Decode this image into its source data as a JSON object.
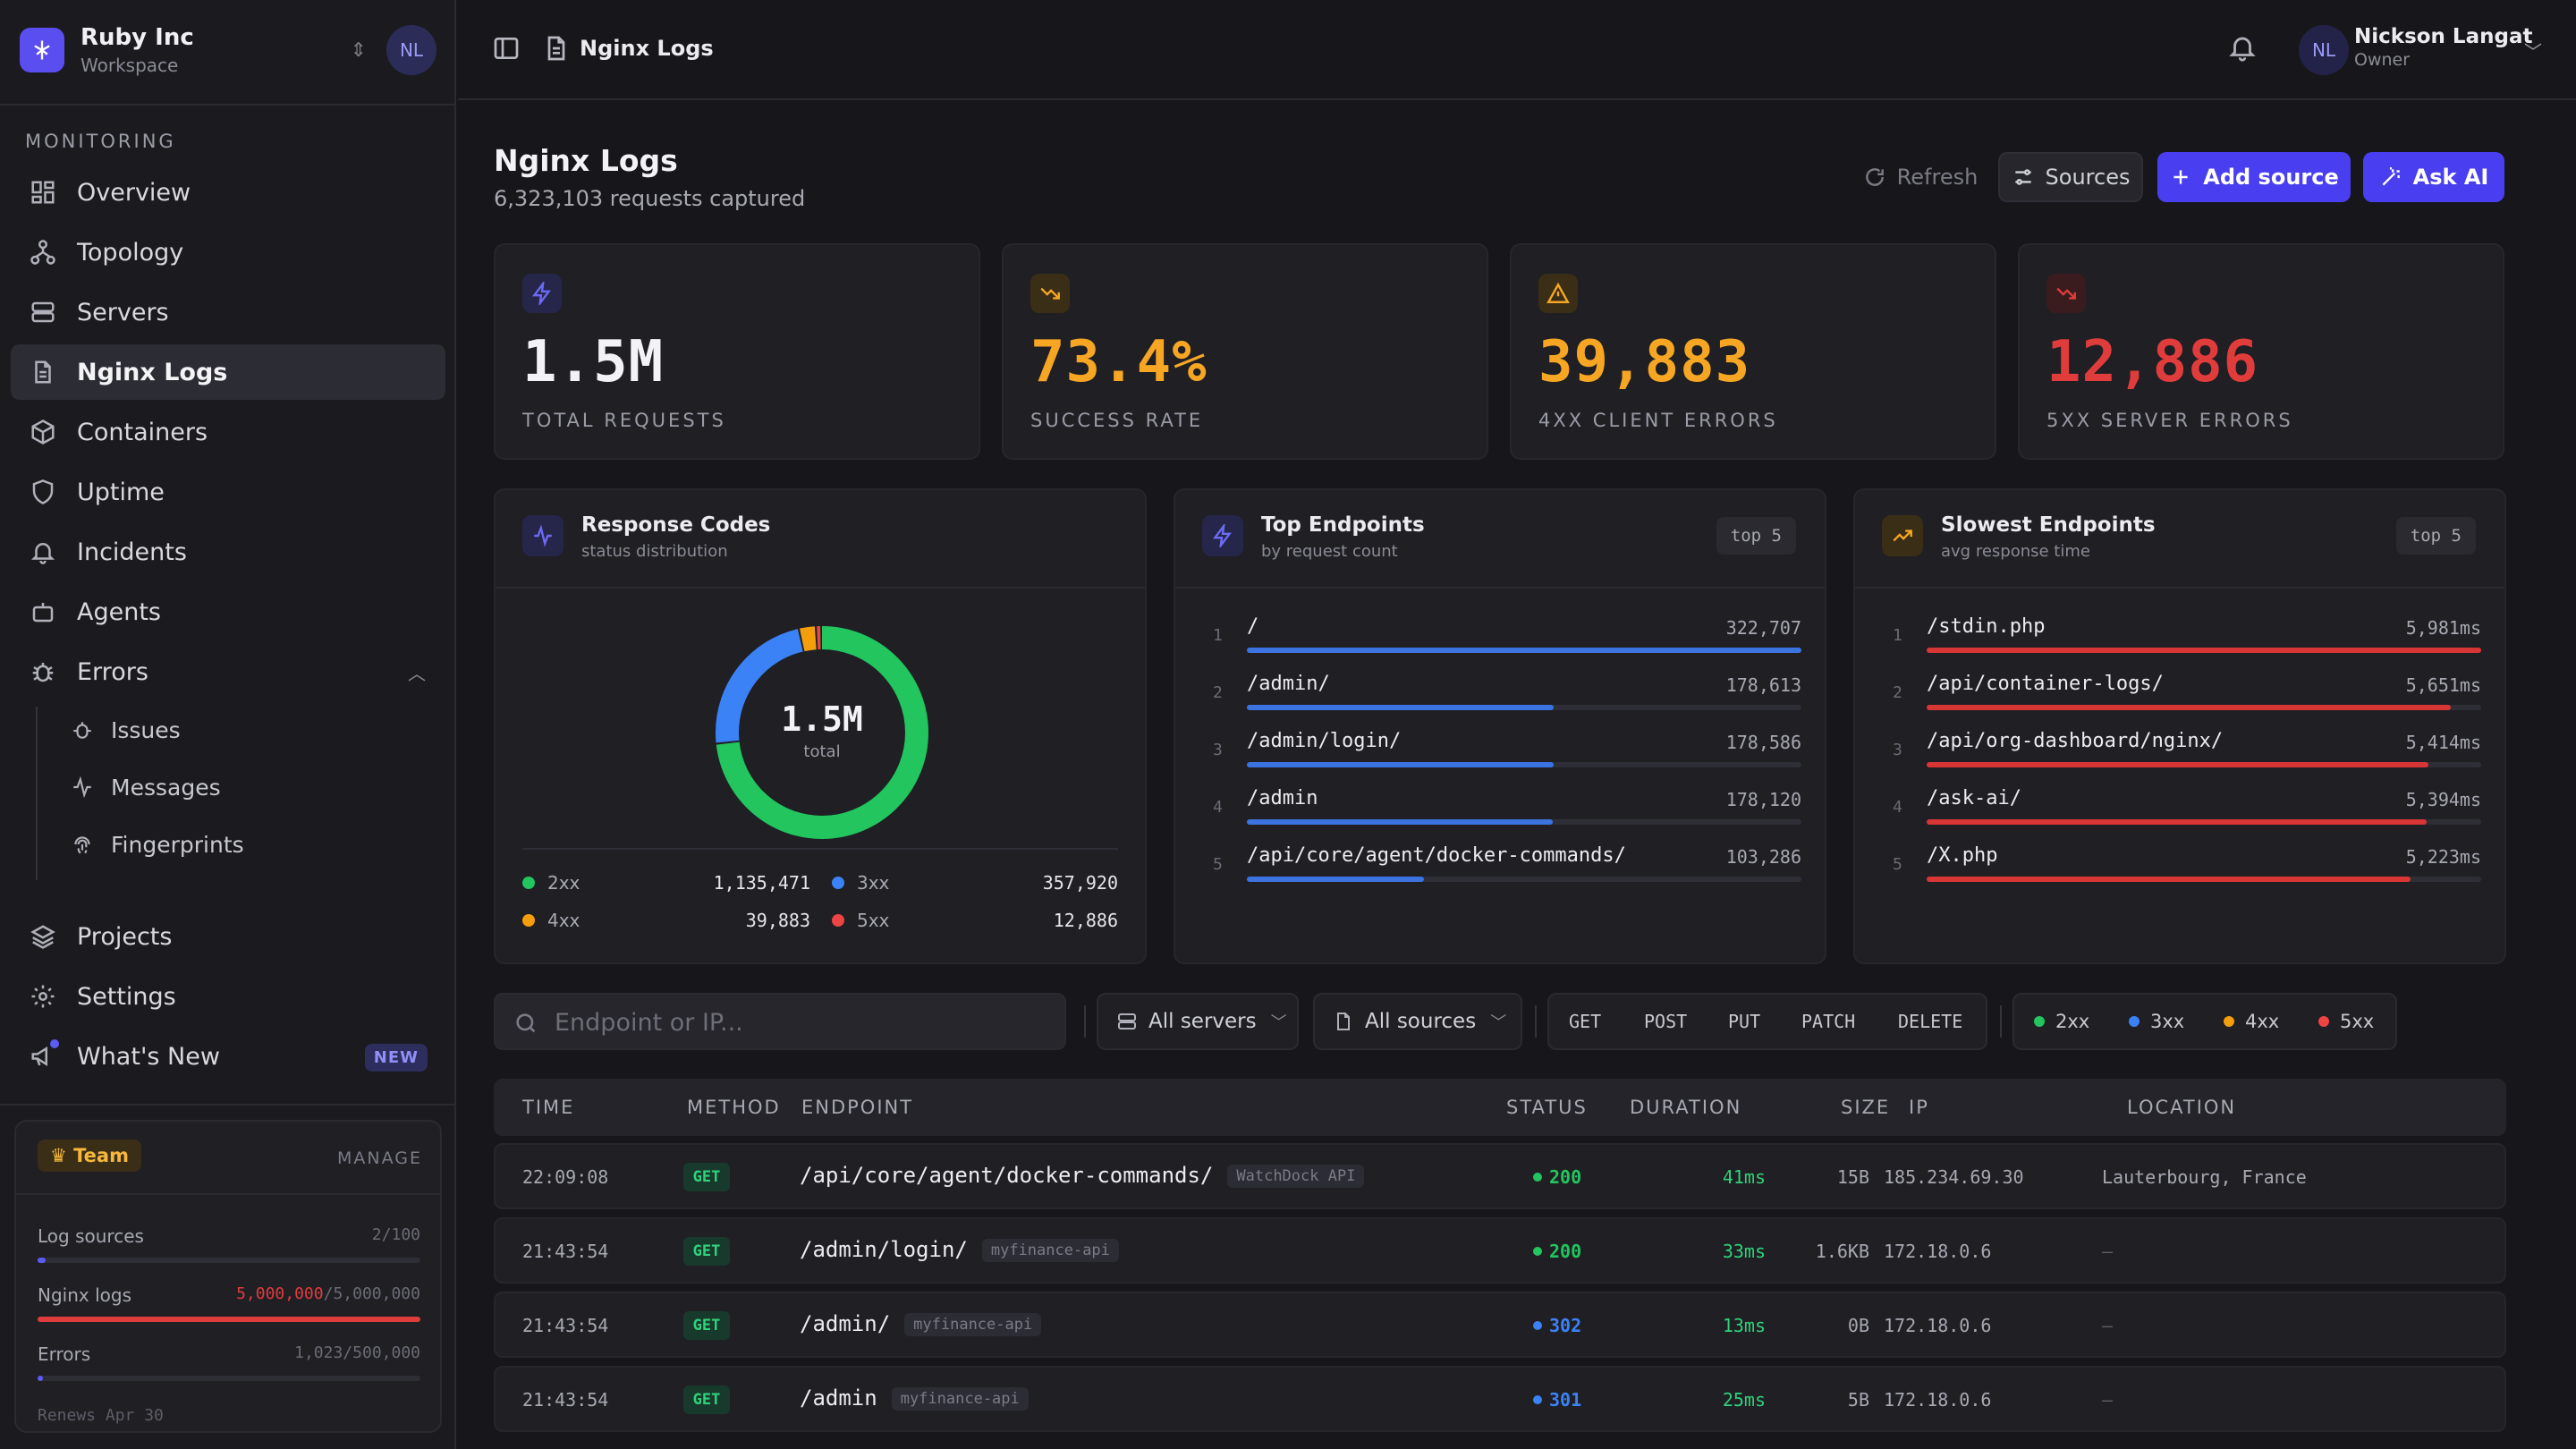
{
  "workspace": {
    "name": "Ruby Inc",
    "sub": "Workspace",
    "initials": "NL"
  },
  "sidebar": {
    "section": "MONITORING",
    "items": [
      {
        "label": "Overview",
        "icon": "grid-icon"
      },
      {
        "label": "Topology",
        "icon": "topology-icon"
      },
      {
        "label": "Servers",
        "icon": "server-icon"
      },
      {
        "label": "Nginx Logs",
        "icon": "file-icon"
      },
      {
        "label": "Containers",
        "icon": "box-icon"
      },
      {
        "label": "Uptime",
        "icon": "shield-icon"
      },
      {
        "label": "Incidents",
        "icon": "bell-icon"
      },
      {
        "label": "Agents",
        "icon": "bot-icon"
      },
      {
        "label": "Errors",
        "icon": "bug-icon"
      }
    ],
    "errors_sub": [
      {
        "label": "Issues",
        "icon": "bug-icon"
      },
      {
        "label": "Messages",
        "icon": "activity-icon"
      },
      {
        "label": "Fingerprints",
        "icon": "fingerprint-icon"
      }
    ],
    "bottom": [
      {
        "label": "Projects",
        "icon": "layers-icon"
      },
      {
        "label": "Settings",
        "icon": "gear-icon"
      },
      {
        "label": "What's New",
        "icon": "megaphone-icon",
        "badge": "NEW"
      }
    ]
  },
  "team": {
    "badge": "Team",
    "manage": "MANAGE",
    "quotas": [
      {
        "label": "Log sources",
        "used": "2",
        "limit": "100",
        "fraction": 0.02,
        "color": "#5b5bf5"
      },
      {
        "label": "Nginx logs",
        "used": "5,000,000",
        "limit": "5,000,000",
        "fraction": 1.0,
        "color": "#e03c3c"
      },
      {
        "label": "Errors",
        "used": "1,023",
        "limit": "500,000",
        "fraction": 0.002,
        "color": "#5b5bf5"
      }
    ],
    "renews": "Renews Apr 30"
  },
  "topbar": {
    "crumb": "Nginx Logs"
  },
  "user": {
    "initials": "NL",
    "name": "Nickson Langat",
    "role": "Owner"
  },
  "page": {
    "title": "Nginx Logs",
    "subtitle": "6,323,103 requests captured"
  },
  "actions": {
    "refresh": "Refresh",
    "sources": "Sources",
    "add": "Add source",
    "ai": "Ask AI"
  },
  "stats": [
    {
      "value": "1.5M",
      "label": "TOTAL REQUESTS",
      "color": "#f3f3f6",
      "icon": "bolt-icon",
      "icon_color": "#6b6bf5",
      "icon_bg": "#26264a"
    },
    {
      "value": "73.4%",
      "label": "SUCCESS RATE",
      "color": "#f6a623",
      "icon": "trend-down-icon",
      "icon_color": "#f6a623",
      "icon_bg": "#3a2e16"
    },
    {
      "value": "39,883",
      "label": "4XX CLIENT ERRORS",
      "color": "#f6a623",
      "icon": "warning-icon",
      "icon_color": "#f6a623",
      "icon_bg": "#3a2e16"
    },
    {
      "value": "12,886",
      "label": "5XX SERVER ERRORS",
      "color": "#e03c3c",
      "icon": "trend-down-icon",
      "icon_color": "#e03c3c",
      "icon_bg": "#3a1c1e"
    }
  ],
  "codes": {
    "title": "Response Codes",
    "subtitle": "status distribution",
    "total": "1.5M",
    "total_label": "total",
    "legend": [
      {
        "name": "2xx",
        "value": "1,135,471",
        "count": 1135471,
        "color": "#22c55e"
      },
      {
        "name": "3xx",
        "value": "357,920",
        "count": 357920,
        "color": "#3b82f6"
      },
      {
        "name": "4xx",
        "value": "39,883",
        "count": 39883,
        "color": "#f59e0b"
      },
      {
        "name": "5xx",
        "value": "12,886",
        "count": 12886,
        "color": "#ef4444"
      }
    ]
  },
  "top": {
    "title": "Top Endpoints",
    "subtitle": "by request count",
    "badge": "top 5",
    "rows": [
      {
        "n": "1",
        "path": "/",
        "value": "322,707",
        "fraction": 1.0
      },
      {
        "n": "2",
        "path": "/admin/",
        "value": "178,613",
        "fraction": 0.553
      },
      {
        "n": "3",
        "path": "/admin/login/",
        "value": "178,586",
        "fraction": 0.553
      },
      {
        "n": "4",
        "path": "/admin",
        "value": "178,120",
        "fraction": 0.552
      },
      {
        "n": "5",
        "path": "/api/core/agent/docker-commands/",
        "value": "103,286",
        "fraction": 0.32
      }
    ]
  },
  "slow": {
    "title": "Slowest Endpoints",
    "subtitle": "avg response time",
    "badge": "top 5",
    "rows": [
      {
        "n": "1",
        "path": "/stdin.php",
        "value": "5,981ms",
        "fraction": 1.0
      },
      {
        "n": "2",
        "path": "/api/container-logs/",
        "value": "5,651ms",
        "fraction": 0.945
      },
      {
        "n": "3",
        "path": "/api/org-dashboard/nginx/",
        "value": "5,414ms",
        "fraction": 0.905
      },
      {
        "n": "4",
        "path": "/ask-ai/",
        "value": "5,394ms",
        "fraction": 0.902
      },
      {
        "n": "5",
        "path": "/X.php",
        "value": "5,223ms",
        "fraction": 0.873
      }
    ]
  },
  "filters": {
    "search_placeholder": "Endpoint or IP...",
    "servers": "All servers",
    "sources": "All sources",
    "methods": [
      "GET",
      "POST",
      "PUT",
      "PATCH",
      "DELETE"
    ],
    "statuses": [
      {
        "name": "2xx",
        "color": "#22c55e"
      },
      {
        "name": "3xx",
        "color": "#3b82f6"
      },
      {
        "name": "4xx",
        "color": "#f59e0b"
      },
      {
        "name": "5xx",
        "color": "#ef4444"
      }
    ]
  },
  "table": {
    "headers": [
      "TIME",
      "METHOD",
      "ENDPOINT",
      "STATUS",
      "DURATION",
      "SIZE",
      "IP",
      "LOCATION"
    ],
    "rows": [
      {
        "time": "22:09:08",
        "method": "GET",
        "endpoint": "/api/core/agent/docker-commands/",
        "tag": "WatchDock API",
        "status": "200",
        "status_color": "#22c55e",
        "duration": "41ms",
        "size": "15B",
        "ip": "185.234.69.30",
        "location": "Lauterbourg, France"
      },
      {
        "time": "21:43:54",
        "method": "GET",
        "endpoint": "/admin/login/",
        "tag": "myfinance-api",
        "status": "200",
        "status_color": "#22c55e",
        "duration": "33ms",
        "size": "1.6KB",
        "ip": "172.18.0.6",
        "location": "—"
      },
      {
        "time": "21:43:54",
        "method": "GET",
        "endpoint": "/admin/",
        "tag": "myfinance-api",
        "status": "302",
        "status_color": "#3b82f6",
        "duration": "13ms",
        "size": "0B",
        "ip": "172.18.0.6",
        "location": "—"
      },
      {
        "time": "21:43:54",
        "method": "GET",
        "endpoint": "/admin",
        "tag": "myfinance-api",
        "status": "301",
        "status_color": "#3b82f6",
        "duration": "25ms",
        "size": "5B",
        "ip": "172.18.0.6",
        "location": "—"
      }
    ]
  }
}
